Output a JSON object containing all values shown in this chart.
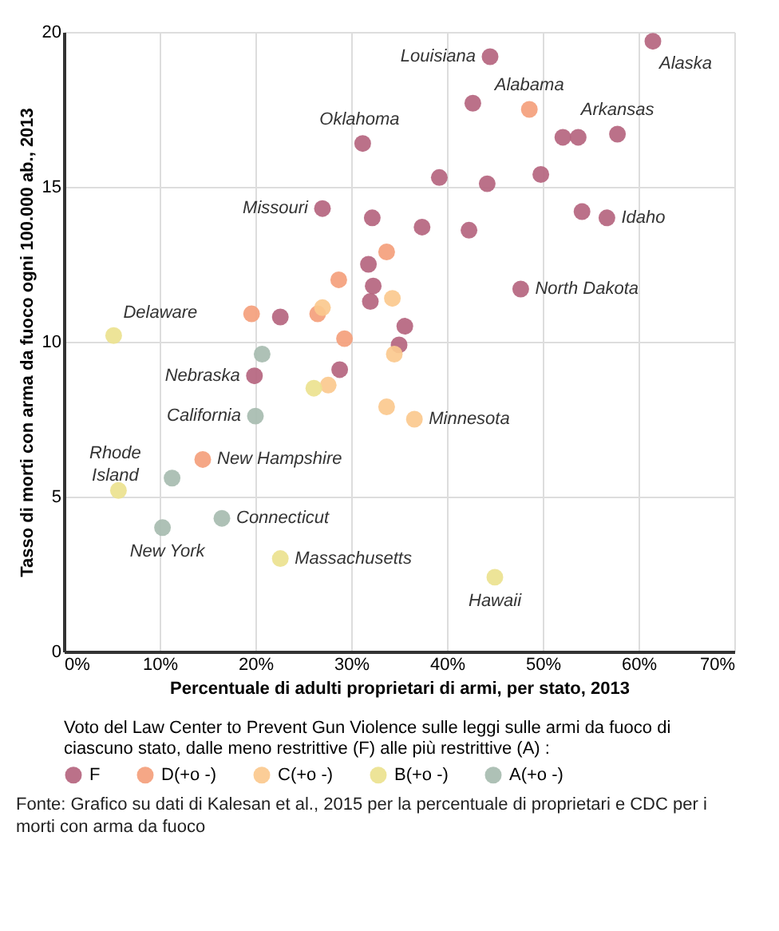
{
  "chart_data": {
    "type": "scatter",
    "xlabel": "Percentuale di adulti proprietari di armi, per stato, 2013",
    "ylabel": "Tasso di morti con arma da fuoco ogni 100.000 ab., 2013",
    "legend_title": "Voto del Law Center to Prevent Gun Violence sulle leggi sulle armi da fuoco di ciascuno stato, dalle meno restrittive (F) alle più restrittive (A) :",
    "xlim": [
      0,
      70
    ],
    "ylim": [
      0,
      20
    ],
    "xticks": [
      {
        "value": 0,
        "label": "0%"
      },
      {
        "value": 10,
        "label": "10%"
      },
      {
        "value": 20,
        "label": "20%"
      },
      {
        "value": 30,
        "label": "30%"
      },
      {
        "value": 40,
        "label": "40%"
      },
      {
        "value": 50,
        "label": "50%"
      },
      {
        "value": 60,
        "label": "60%"
      },
      {
        "value": 70,
        "label": "70%"
      }
    ],
    "yticks": [
      0,
      5,
      10,
      15,
      20
    ],
    "grid": true,
    "legend": "bottom",
    "marker": "circle",
    "series": [
      {
        "name": "F",
        "color": "#b5657f",
        "x": [
          44.5,
          61.5,
          42.7,
          52.1,
          53.7,
          57.8,
          31.2,
          39.2,
          44.2,
          49.8,
          27.0,
          32.2,
          37.4,
          42.3,
          54.1,
          56.7,
          31.8,
          32.3,
          32.0,
          47.7,
          22.6,
          35.6,
          35.0,
          19.9,
          28.8
        ],
        "values": [
          19.2,
          19.7,
          17.7,
          16.6,
          16.6,
          16.7,
          16.4,
          15.3,
          15.1,
          15.4,
          14.3,
          14.0,
          13.7,
          13.6,
          14.2,
          14.0,
          12.5,
          11.8,
          11.3,
          11.7,
          10.8,
          10.5,
          9.9,
          8.9,
          9.1
        ]
      },
      {
        "name": "D(+o -)",
        "color": "#f4a07c",
        "x": [
          48.6,
          33.7,
          28.7,
          26.5,
          19.6,
          29.3,
          14.5
        ],
        "values": [
          17.5,
          12.9,
          12.0,
          10.9,
          10.9,
          10.1,
          6.2
        ]
      },
      {
        "name": "C(+o -)",
        "color": "#fbc98e",
        "x": [
          34.3,
          27.0,
          34.5,
          27.6,
          33.7,
          36.6
        ],
        "values": [
          11.4,
          11.1,
          9.6,
          8.6,
          7.9,
          7.5
        ]
      },
      {
        "name": "B(+o -)",
        "color": "#ece28f",
        "x": [
          5.2,
          26.1,
          5.7,
          22.6,
          45.0
        ],
        "values": [
          10.2,
          8.5,
          5.2,
          3.0,
          2.4
        ]
      },
      {
        "name": "A(+o -)",
        "color": "#a7bcb0",
        "x": [
          20.7,
          20.0,
          11.3,
          10.3,
          16.5
        ],
        "values": [
          9.6,
          7.6,
          5.6,
          4.0,
          4.3
        ]
      }
    ],
    "annotations": [
      {
        "text": "Louisiana",
        "x": 44.5,
        "y": 19.2
      },
      {
        "text": "Alaska",
        "x": 61.5,
        "y": 19.7
      },
      {
        "text": "Alabama",
        "x": 48.6,
        "y": 17.5
      },
      {
        "text": "Arkansas",
        "x": 57.8,
        "y": 16.7
      },
      {
        "text": "Oklahoma",
        "x": 31.2,
        "y": 16.4
      },
      {
        "text": "Missouri",
        "x": 27.0,
        "y": 14.3
      },
      {
        "text": "Idaho",
        "x": 56.7,
        "y": 14.0
      },
      {
        "text": "North Dakota",
        "x": 47.7,
        "y": 11.7
      },
      {
        "text": "Delaware",
        "x": 5.2,
        "y": 10.2
      },
      {
        "text": "Nebraska",
        "x": 19.9,
        "y": 8.9
      },
      {
        "text": "California",
        "x": 20.0,
        "y": 7.6
      },
      {
        "text": "Minnesota",
        "x": 36.6,
        "y": 7.5
      },
      {
        "text": "New Hampshire",
        "x": 14.5,
        "y": 6.2
      },
      {
        "text": "Rhode Island",
        "x": 5.7,
        "y": 5.2
      },
      {
        "text": "Connecticut",
        "x": 16.5,
        "y": 4.3
      },
      {
        "text": "New York",
        "x": 10.3,
        "y": 4.0
      },
      {
        "text": "Massachusetts",
        "x": 22.6,
        "y": 3.0
      },
      {
        "text": "Hawaii",
        "x": 45.0,
        "y": 2.4
      },
      "Fonte: Grafico su dati di Kalesan et al., 2015 per la percentuale di proprietari e CDC per i morti con arma da fuoco"
    ]
  }
}
